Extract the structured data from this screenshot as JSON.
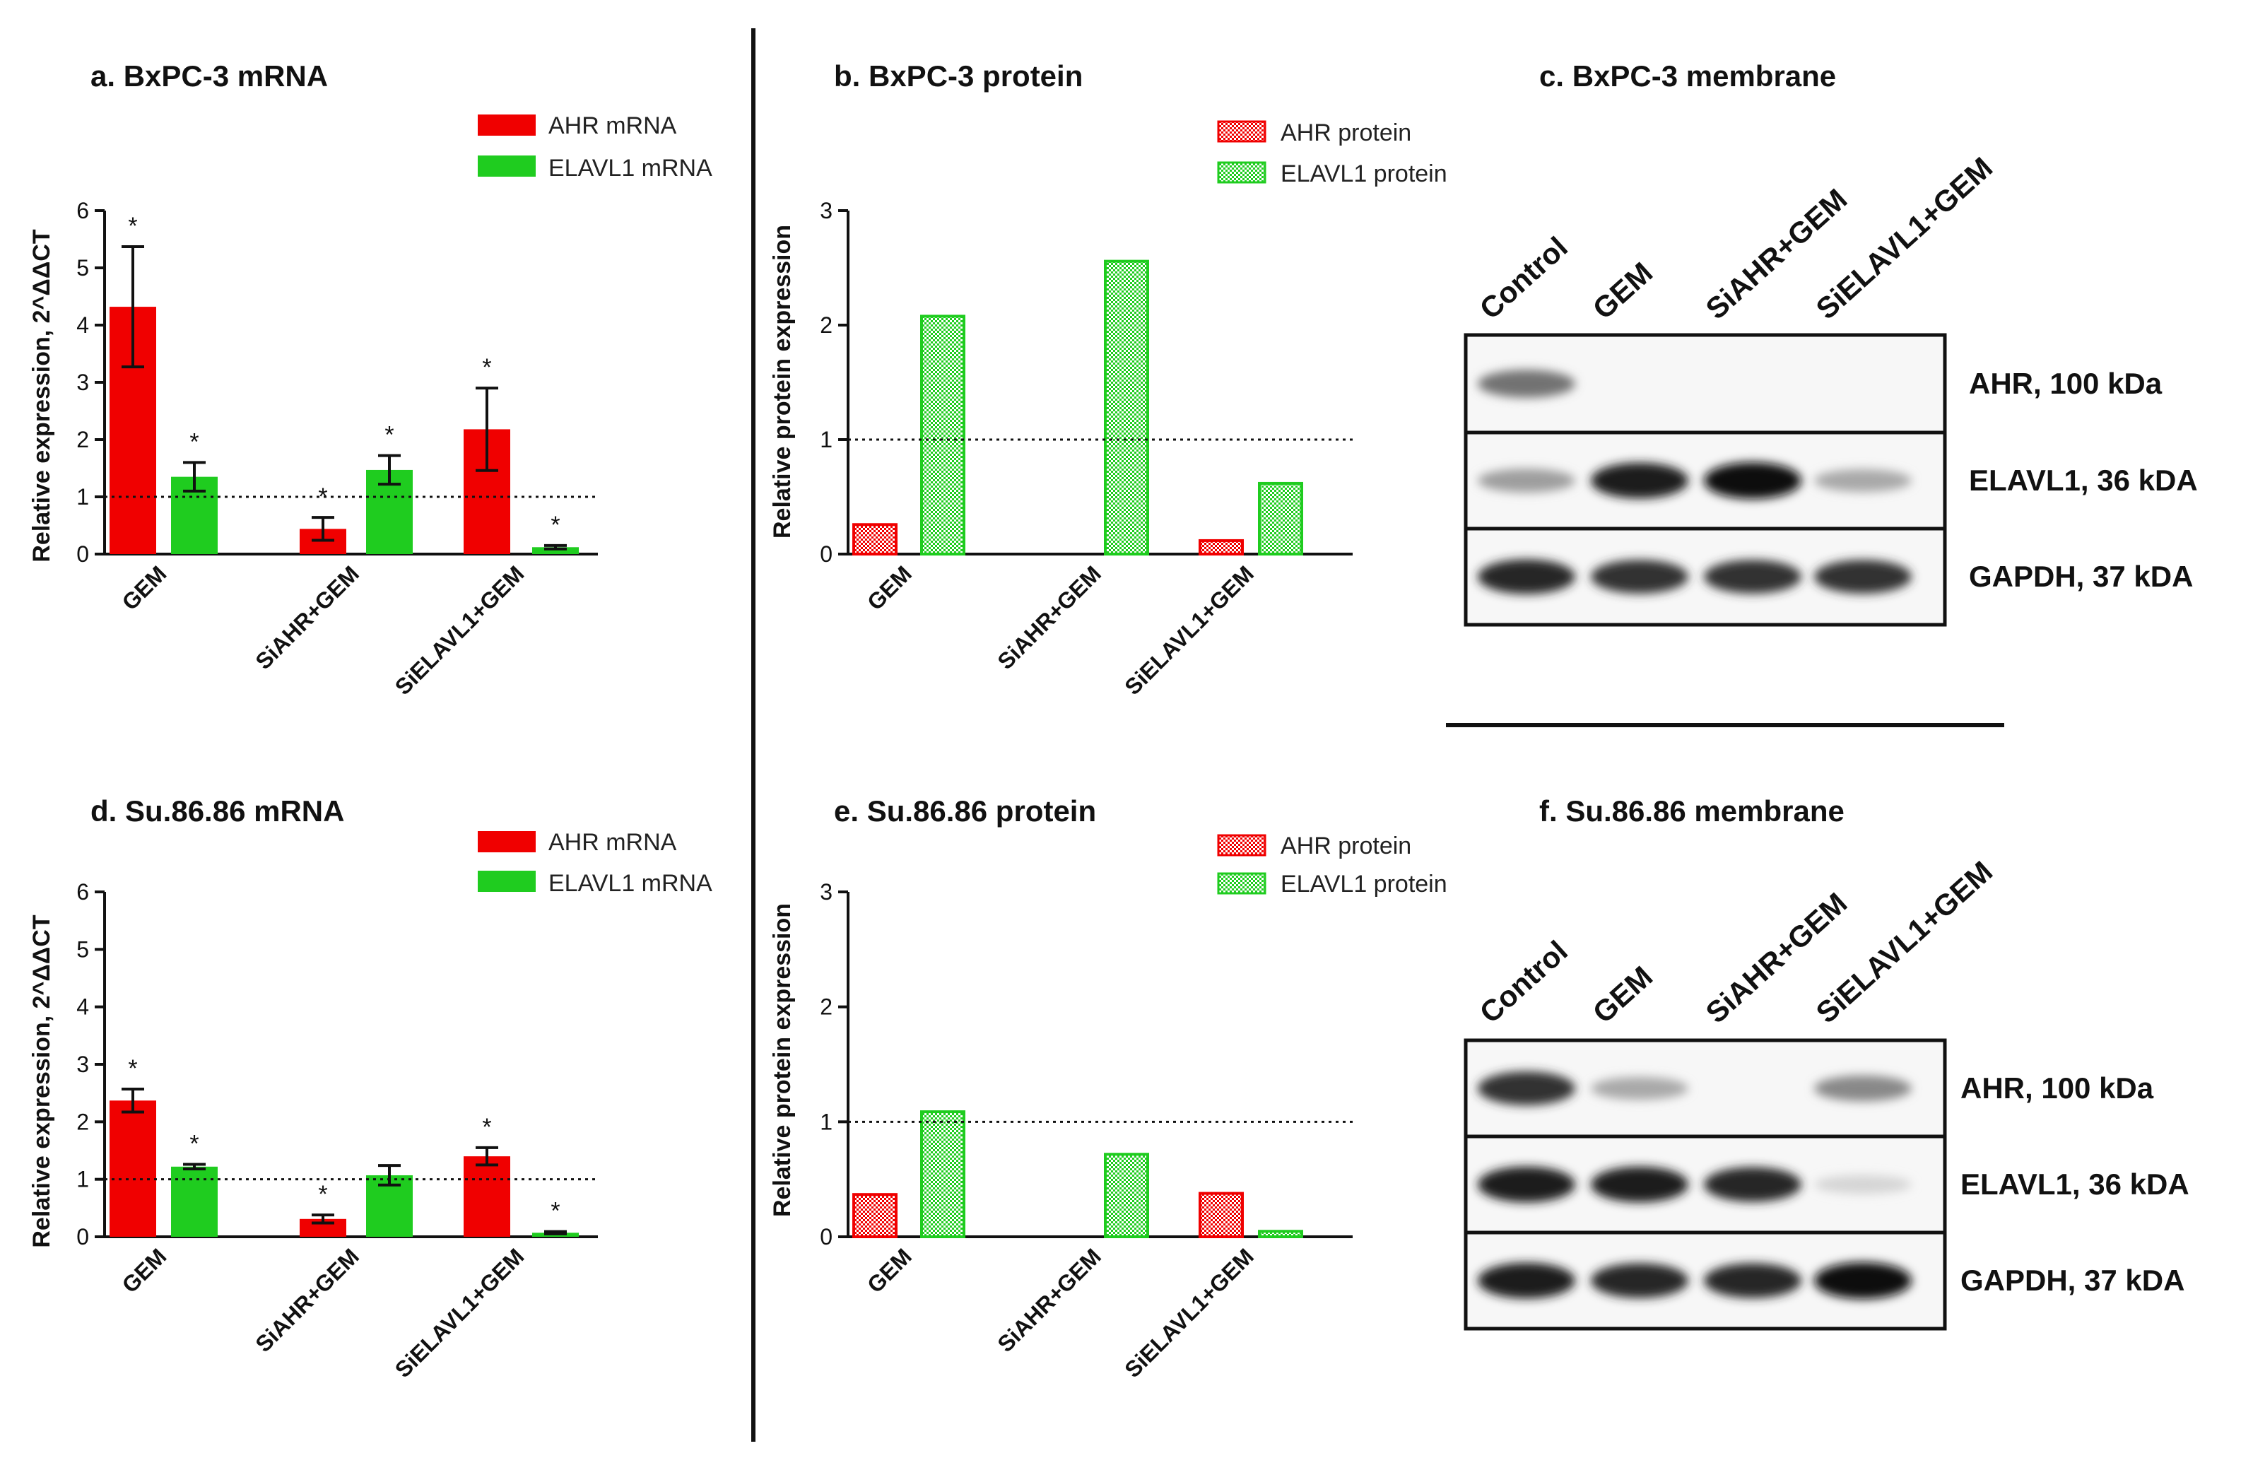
{
  "colors": {
    "ahr": "#f00000",
    "elavl1": "#1fcc1f",
    "axis": "#111111",
    "divider": "#111111"
  },
  "chart_data": [
    {
      "panel": "a",
      "type": "bar",
      "title": "a. BxPC-3 mRNA",
      "ylabel": "Relative expression, 2^ΔΔCT",
      "ylim": [
        0,
        6
      ],
      "yticks": [
        "0",
        "1",
        "2",
        "3",
        "4",
        "5",
        "6"
      ],
      "reference_line": 1,
      "categories": [
        "GEM",
        "SiAHR+GEM",
        "SiELAVL1+GEM"
      ],
      "series": [
        {
          "name": "AHR mRNA",
          "values": [
            4.32,
            0.44,
            2.18
          ],
          "err": [
            1.05,
            0.2,
            0.72
          ],
          "sig": [
            "*",
            "*",
            "*"
          ]
        },
        {
          "name": "ELAVL1 mRNA",
          "values": [
            1.35,
            1.47,
            0.12
          ],
          "err": [
            0.25,
            0.25,
            0.03
          ],
          "sig": [
            "*",
            "*",
            "*"
          ]
        }
      ]
    },
    {
      "panel": "b",
      "type": "bar",
      "title": "b. BxPC-3 protein",
      "ylabel": "Relative protein expression",
      "ylim": [
        0,
        3
      ],
      "yticks": [
        "0",
        "1",
        "2",
        "3"
      ],
      "reference_line": 1,
      "categories": [
        "GEM",
        "SiAHR+GEM",
        "SiELAVL1+GEM"
      ],
      "series": [
        {
          "name": "AHR protein",
          "values": [
            0.27,
            0,
            0.13
          ]
        },
        {
          "name": "ELAVL1 protein",
          "values": [
            2.09,
            2.57,
            0.63
          ]
        }
      ]
    },
    {
      "panel": "d",
      "type": "bar",
      "title": "d. Su.86.86 mRNA",
      "ylabel": "Relative expression, 2^ΔΔCT",
      "ylim": [
        0,
        6
      ],
      "yticks": [
        "0",
        "1",
        "2",
        "3",
        "4",
        "5",
        "6"
      ],
      "reference_line": 1,
      "categories": [
        "GEM",
        "SiAHR+GEM",
        "SiELAVL1+GEM"
      ],
      "series": [
        {
          "name": "AHR mRNA",
          "values": [
            2.37,
            0.31,
            1.4
          ],
          "err": [
            0.2,
            0.07,
            0.15
          ],
          "sig": [
            "*",
            "*",
            "*"
          ]
        },
        {
          "name": "ELAVL1 mRNA",
          "values": [
            1.22,
            1.07,
            0.07
          ],
          "err": [
            0.04,
            0.17,
            0.02
          ],
          "sig": [
            "*",
            "",
            "*"
          ]
        }
      ]
    },
    {
      "panel": "e",
      "type": "bar",
      "title": "e. Su.86.86 protein",
      "ylabel": "Relative protein expression",
      "ylim": [
        0,
        3
      ],
      "yticks": [
        "0",
        "1",
        "2",
        "3"
      ],
      "reference_line": 1,
      "categories": [
        "GEM",
        "SiAHR+GEM",
        "SiELAVL1+GEM"
      ],
      "series": [
        {
          "name": "AHR protein",
          "values": [
            0.38,
            0,
            0.39
          ]
        },
        {
          "name": "ELAVL1 protein",
          "values": [
            1.1,
            0.73,
            0.06
          ]
        }
      ]
    }
  ],
  "blots": [
    {
      "title": "c. BxPC-3 membrane",
      "lanes": [
        "Control",
        "GEM",
        "SiAHR+GEM",
        "SiELAVL1+GEM"
      ],
      "bands": [
        {
          "label": "AHR, 100 kDa",
          "intensity": [
            0.55,
            0,
            0,
            0
          ]
        },
        {
          "label": "ELAVL1, 36 kDA",
          "intensity": [
            0.35,
            0.95,
            1.0,
            0.3
          ]
        },
        {
          "label": "GAPDH, 37 kDA",
          "intensity": [
            0.9,
            0.85,
            0.85,
            0.85
          ]
        }
      ]
    },
    {
      "title": "f. Su.86.86 membrane",
      "lanes": [
        "Control",
        "GEM",
        "SiAHR+GEM",
        "SiELAVL1+GEM"
      ],
      "bands": [
        {
          "label": "AHR, 100 kDa",
          "intensity": [
            0.85,
            0.3,
            0,
            0.45
          ]
        },
        {
          "label": "ELAVL1, 36 kDA",
          "intensity": [
            0.95,
            0.95,
            0.9,
            0.1
          ]
        },
        {
          "label": "GAPDH, 37 kDA",
          "intensity": [
            0.95,
            0.9,
            0.9,
            1.0
          ]
        }
      ]
    }
  ]
}
